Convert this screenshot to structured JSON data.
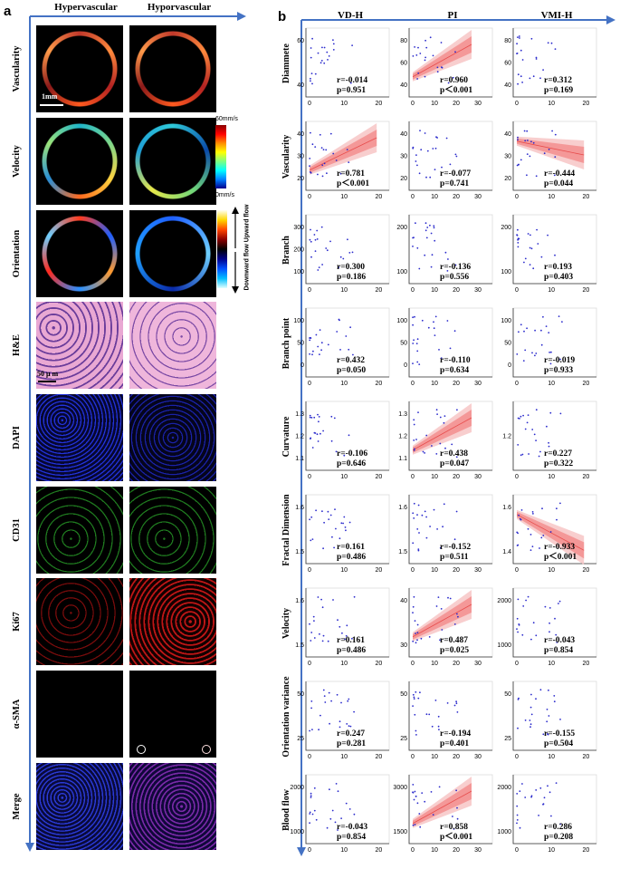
{
  "panel_a": {
    "letter": "a",
    "col_headers": [
      "Hypervascular",
      "Hyporvascular"
    ],
    "rows": [
      "Vascularity",
      "Velocity",
      "Orientation",
      "H&E",
      "DAPI",
      "CD31",
      "Ki67",
      "α-SMA",
      "Merge"
    ],
    "scale_bar_1": "1mm",
    "scale_bar_2": "50 μ m",
    "velocity_colorbar": {
      "max": "60mm/s",
      "min": "0mm/s"
    },
    "orientation_colorbar": {
      "upward": "Upward flow",
      "downward": "Downward flow"
    }
  },
  "panel_b": {
    "letter": "b",
    "col_headers": [
      "VD-H",
      "PI",
      "VMI-H"
    ],
    "row_labels": [
      "Diammete",
      "Vascularity",
      "Branch",
      "Branch point",
      "Curvature",
      "Fractal Dimension",
      "Velocity",
      "Orientation variance",
      "Blood flow"
    ]
  },
  "chart_data": [
    {
      "type": "scatter",
      "row": "Diammete",
      "col": "VD-H",
      "r": "r=-0.014",
      "p": "p=0.951",
      "yticks": [
        "40",
        "60"
      ],
      "xticks": [
        "0",
        "10",
        "20"
      ],
      "fit": false
    },
    {
      "type": "scatter",
      "row": "Diammete",
      "col": "PI",
      "r": "r=0.960",
      "p": "p＜0.001",
      "yticks": [
        "40",
        "60",
        "80"
      ],
      "xticks": [
        "0",
        "10",
        "20",
        "30"
      ],
      "fit": true
    },
    {
      "type": "scatter",
      "row": "Diammete",
      "col": "VMI-H",
      "r": "r=0.312",
      "p": "p=0.169",
      "yticks": [
        "40",
        "60",
        "80"
      ],
      "xticks": [
        "0",
        "10",
        "20"
      ],
      "fit": false
    },
    {
      "type": "scatter",
      "row": "Vascularity",
      "col": "VD-H",
      "r": "r=0.781",
      "p": "p＜0.001",
      "yticks": [
        "20",
        "30",
        "40"
      ],
      "xticks": [
        "0",
        "10",
        "20"
      ],
      "fit": true
    },
    {
      "type": "scatter",
      "row": "Vascularity",
      "col": "PI",
      "r": "r=-0.077",
      "p": "p=0.741",
      "yticks": [
        "20",
        "30",
        "40"
      ],
      "xticks": [
        "0",
        "10",
        "20",
        "30"
      ],
      "fit": false
    },
    {
      "type": "scatter",
      "row": "Vascularity",
      "col": "VMI-H",
      "r": "r=-0.444",
      "p": "p=0.044",
      "yticks": [
        "20",
        "30",
        "40"
      ],
      "xticks": [
        "0",
        "10",
        "20"
      ],
      "fit": true
    },
    {
      "type": "scatter",
      "row": "Branch",
      "col": "VD-H",
      "r": "r=0.300",
      "p": "p=0.186",
      "yticks": [
        "100",
        "200",
        "300"
      ],
      "xticks": [
        "0",
        "10",
        "20"
      ],
      "fit": false
    },
    {
      "type": "scatter",
      "row": "Branch",
      "col": "PI",
      "r": "r=-0.136",
      "p": "p=0.556",
      "yticks": [
        "100",
        "200"
      ],
      "xticks": [
        "0",
        "10",
        "20",
        "30"
      ],
      "fit": false
    },
    {
      "type": "scatter",
      "row": "Branch",
      "col": "VMI-H",
      "r": "r=0.193",
      "p": "p=0.403",
      "yticks": [
        "100",
        "200"
      ],
      "xticks": [
        "0",
        "10",
        "20"
      ],
      "fit": false
    },
    {
      "type": "scatter",
      "row": "Branch point",
      "col": "VD-H",
      "r": "r=0.432",
      "p": "p=0.050",
      "yticks": [
        "0",
        "50",
        "100"
      ],
      "xticks": [
        "0",
        "10",
        "20"
      ],
      "fit": false
    },
    {
      "type": "scatter",
      "row": "Branch point",
      "col": "PI",
      "r": "r=-0.110",
      "p": "p=0.634",
      "yticks": [
        "0",
        "50",
        "100"
      ],
      "xticks": [
        "0",
        "10",
        "20",
        "30"
      ],
      "fit": false
    },
    {
      "type": "scatter",
      "row": "Branch point",
      "col": "VMI-H",
      "r": "r=-0.019",
      "p": "p=0.933",
      "yticks": [
        "0",
        "50",
        "100"
      ],
      "xticks": [
        "0",
        "10",
        "20"
      ],
      "fit": false
    },
    {
      "type": "scatter",
      "row": "Curvature",
      "col": "VD-H",
      "r": "r=-0.106",
      "p": "p=0.646",
      "yticks": [
        "1.1",
        "1.2",
        "1.3"
      ],
      "xticks": [
        "0",
        "10",
        "20"
      ],
      "fit": false
    },
    {
      "type": "scatter",
      "row": "Curvature",
      "col": "PI",
      "r": "r=0.438",
      "p": "p=0.047",
      "yticks": [
        "1.1",
        "1.2",
        "1.3"
      ],
      "xticks": [
        "0",
        "10",
        "20",
        "30"
      ],
      "fit": true
    },
    {
      "type": "scatter",
      "row": "Curvature",
      "col": "VMI-H",
      "r": "r=0.227",
      "p": "p=0.322",
      "yticks": [
        "1.2"
      ],
      "xticks": [
        "0",
        "10",
        "20"
      ],
      "fit": false
    },
    {
      "type": "scatter",
      "row": "Fractal Dimension",
      "col": "VD-H",
      "r": "r=0.161",
      "p": "p=0.486",
      "yticks": [
        "1.5",
        "1.6"
      ],
      "xticks": [
        "0",
        "10",
        "20"
      ],
      "fit": false
    },
    {
      "type": "scatter",
      "row": "Fractal Dimension",
      "col": "PI",
      "r": "r=-0.152",
      "p": "p=0.511",
      "yticks": [
        "1.5",
        "1.6"
      ],
      "xticks": [
        "0",
        "10",
        "20",
        "30"
      ],
      "fit": false
    },
    {
      "type": "scatter",
      "row": "Fractal Dimension",
      "col": "VMI-H",
      "r": "r=-0.933",
      "p": "p＜0.001",
      "yticks": [
        "1.4",
        "1.6"
      ],
      "xticks": [
        "0",
        "10",
        "20"
      ],
      "fit": true
    },
    {
      "type": "scatter",
      "row": "Velocity",
      "col": "VD-H",
      "r": "r=0.161",
      "p": "p=0.486",
      "yticks": [
        "1.5",
        "1.6"
      ],
      "xticks": [
        "0",
        "10",
        "20"
      ],
      "fit": false
    },
    {
      "type": "scatter",
      "row": "Velocity",
      "col": "PI",
      "r": "r=0.487",
      "p": "p=0.025",
      "yticks": [
        "30",
        "40"
      ],
      "xticks": [
        "0",
        "10",
        "20",
        "30"
      ],
      "fit": true
    },
    {
      "type": "scatter",
      "row": "Velocity",
      "col": "VMI-H",
      "r": "r=-0.043",
      "p": "p=0.854",
      "yticks": [
        "1000",
        "2000"
      ],
      "xticks": [
        "0",
        "10",
        "20"
      ],
      "fit": false
    },
    {
      "type": "scatter",
      "row": "Orientation variance",
      "col": "VD-H",
      "r": "r=0.247",
      "p": "p=0.281",
      "yticks": [
        "25",
        "50"
      ],
      "xticks": [
        "0",
        "10",
        "20"
      ],
      "fit": false
    },
    {
      "type": "scatter",
      "row": "Orientation variance",
      "col": "PI",
      "r": "r=-0.194",
      "p": "p=0.401",
      "yticks": [
        "25",
        "50"
      ],
      "xticks": [
        "0",
        "10",
        "20",
        "30"
      ],
      "fit": false
    },
    {
      "type": "scatter",
      "row": "Orientation variance",
      "col": "VMI-H",
      "r": "r=-0.155",
      "p": "p=0.504",
      "yticks": [
        "25",
        "50"
      ],
      "xticks": [
        "0",
        "10",
        "20"
      ],
      "fit": false
    },
    {
      "type": "scatter",
      "row": "Blood flow",
      "col": "VD-H",
      "r": "r=-0.043",
      "p": "p=0.854",
      "yticks": [
        "1000",
        "2000"
      ],
      "xticks": [
        "0",
        "10",
        "20"
      ],
      "fit": false
    },
    {
      "type": "scatter",
      "row": "Blood flow",
      "col": "PI",
      "r": "r=0.858",
      "p": "p＜0.001",
      "yticks": [
        "1500",
        "3000"
      ],
      "xticks": [
        "0",
        "10",
        "20",
        "30"
      ],
      "fit": true
    },
    {
      "type": "scatter",
      "row": "Blood flow",
      "col": "VMI-H",
      "r": "r=0.286",
      "p": "p=0.208",
      "yticks": [
        "1000",
        "2000"
      ],
      "xticks": [
        "0",
        "10",
        "20"
      ],
      "fit": false
    }
  ],
  "colors": {
    "arrow": "#4472c4",
    "fit_band_outer": "#f7c5c5",
    "fit_band_inner": "#f28b8b",
    "fit_line": "#e74c4c",
    "points": "#2a2acc"
  }
}
